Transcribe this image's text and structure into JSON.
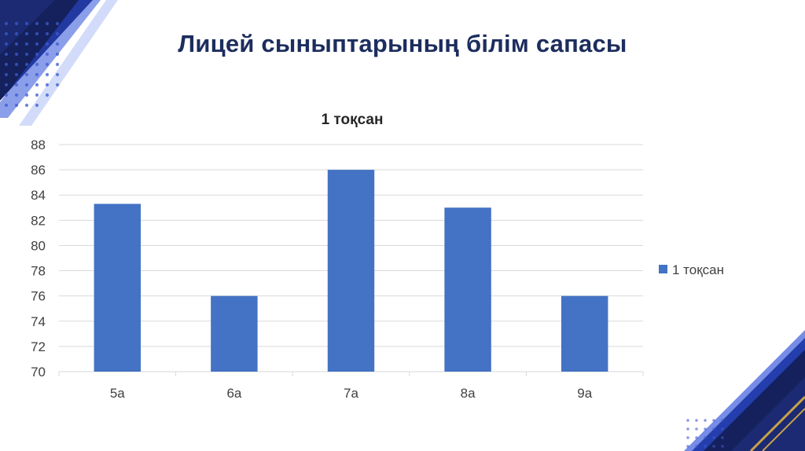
{
  "slide": {
    "title": "Лицей сыныптарының білім сапасы"
  },
  "colors": {
    "bar": "#4472c4",
    "grid": "#d9d9d9",
    "axis_text": "#404040",
    "title_text": "#1c2d5e",
    "deco_navy": "#14215c",
    "deco_blue": "#2c4fd8",
    "deco_gold": "#c9a24a"
  },
  "chart_data": {
    "type": "bar",
    "title": "1 тоқсан",
    "categories": [
      "5а",
      "6а",
      "7а",
      "8а",
      "9а"
    ],
    "series": [
      {
        "name": "1 тоқсан",
        "values": [
          83.3,
          76,
          86,
          83,
          76
        ]
      }
    ],
    "ylim": [
      70,
      88
    ],
    "yticks": [
      70,
      72,
      74,
      76,
      78,
      80,
      82,
      84,
      86,
      88
    ],
    "grid": true,
    "legend": "right"
  }
}
